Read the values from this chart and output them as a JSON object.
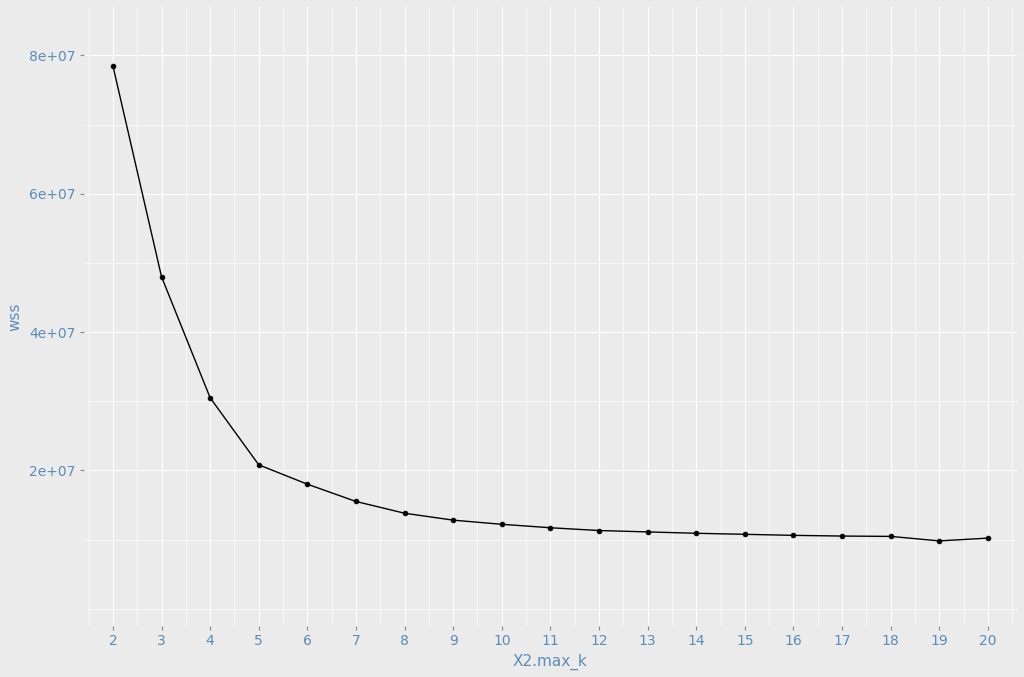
{
  "x": [
    2,
    3,
    4,
    5,
    6,
    7,
    8,
    9,
    10,
    11,
    12,
    13,
    14,
    15,
    16,
    17,
    18,
    19,
    20
  ],
  "wss": [
    78500000,
    48000000,
    30500000,
    20800000,
    18000000,
    15500000,
    13800000,
    12800000,
    12200000,
    11700000,
    11300000,
    11100000,
    10900000,
    10750000,
    10600000,
    10500000,
    10450000,
    9800000,
    10200000
  ],
  "xlabel": "X2.max_k",
  "ylabel": "wss",
  "xlim": [
    1.4,
    20.6
  ],
  "ylim_bottom": -2500000,
  "ylim_top": 87000000,
  "yticks": [
    20000000,
    40000000,
    60000000,
    80000000
  ],
  "ytick_labels": [
    "2e+07",
    "4e+07",
    "6e+07",
    "8e+07"
  ],
  "xticks": [
    2,
    3,
    4,
    5,
    6,
    7,
    8,
    9,
    10,
    11,
    12,
    13,
    14,
    15,
    16,
    17,
    18,
    19,
    20
  ],
  "background_color": "#EBEBEB",
  "grid_color": "#FFFFFF",
  "line_color": "#000000",
  "marker_color": "#000000",
  "tick_label_color": "#5B8DB8",
  "axis_label_color": "#5B8DB8",
  "marker_size": 3.5,
  "line_width": 1.0,
  "font_size_ticks": 10,
  "font_size_labels": 11
}
